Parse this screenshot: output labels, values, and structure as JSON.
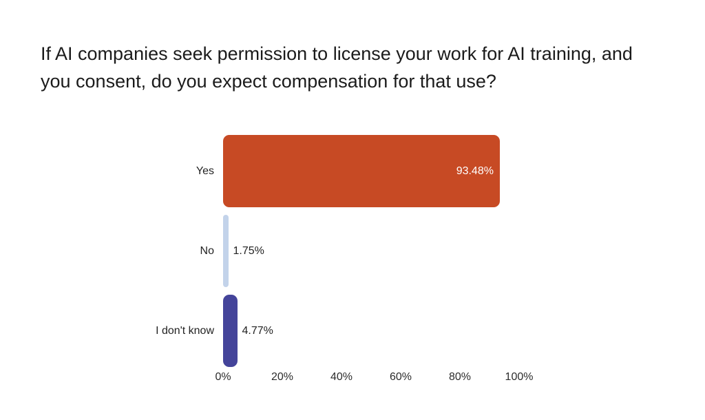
{
  "colors": {
    "background": "#ffffff",
    "title_text": "#1b1b1b",
    "category_text": "#222222",
    "axis_text": "#2b2b2b"
  },
  "chart_data": {
    "type": "bar",
    "orientation": "horizontal",
    "title": "If AI companies seek permission to license your work for AI training, and you consent, do you expect compensation for that use?",
    "categories": [
      "Yes",
      "No",
      "I don't know"
    ],
    "values": [
      93.48,
      1.75,
      4.77
    ],
    "value_labels": [
      "93.48%",
      "1.75%",
      "4.77%"
    ],
    "bar_colors": [
      "#C74A24",
      "#C3D3EA",
      "#44449A"
    ],
    "value_label_positions": [
      "inside",
      "outside",
      "outside"
    ],
    "value_label_colors": [
      "#FFFFFF",
      "#222222",
      "#222222"
    ],
    "xlabel": "",
    "ylabel": "",
    "xlim": [
      0,
      100
    ],
    "xticks": [
      0,
      20,
      40,
      60,
      80,
      100
    ],
    "xtick_labels": [
      "0%",
      "20%",
      "40%",
      "60%",
      "80%",
      "100%"
    ],
    "grid": false,
    "legend": false
  }
}
